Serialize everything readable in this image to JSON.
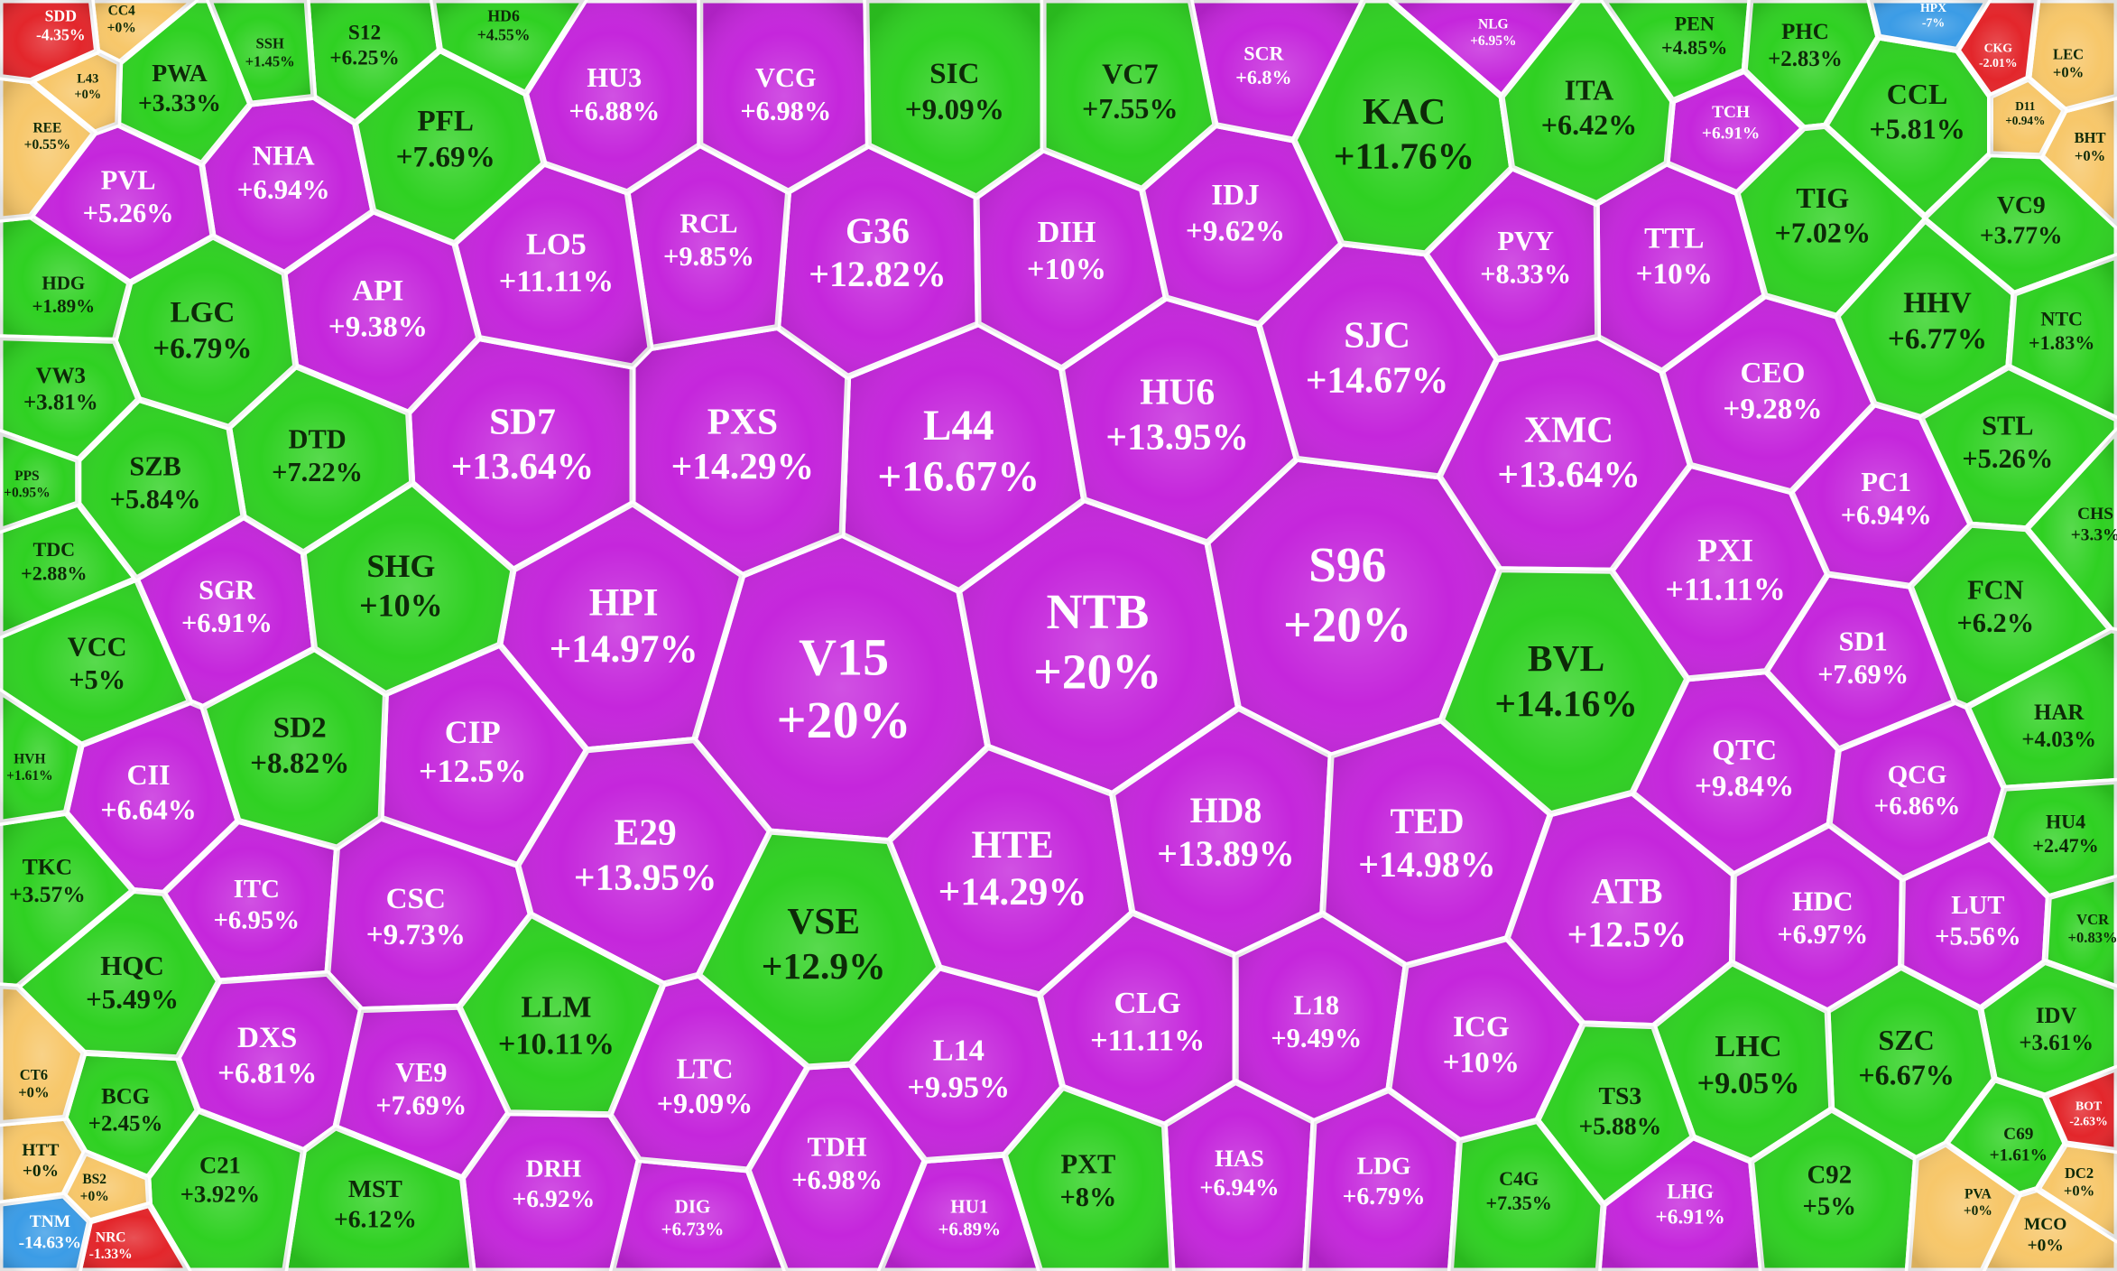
{
  "cells": [
    {
      "ticker": "V15",
      "change": "+20%",
      "color": "#c526dc"
    },
    {
      "ticker": "NTB",
      "change": "+20%",
      "color": "#c526dc"
    },
    {
      "ticker": "S96",
      "change": "+20%",
      "color": "#c526dc"
    },
    {
      "ticker": "L44",
      "change": "+16.67%",
      "color": "#c526dc"
    },
    {
      "ticker": "HU6",
      "change": "+13.95%",
      "color": "#c526dc"
    },
    {
      "ticker": "SJC",
      "change": "+14.67%",
      "color": "#c526dc"
    },
    {
      "ticker": "PXS",
      "change": "+14.29%",
      "color": "#c526dc"
    },
    {
      "ticker": "SD7",
      "change": "+13.64%",
      "color": "#c526dc"
    },
    {
      "ticker": "HPI",
      "change": "+14.97%",
      "color": "#c526dc"
    },
    {
      "ticker": "G36",
      "change": "+12.82%",
      "color": "#c526dc"
    },
    {
      "ticker": "DIH",
      "change": "+10%",
      "color": "#c526dc"
    },
    {
      "ticker": "IDJ",
      "change": "+9.62%",
      "color": "#c526dc"
    },
    {
      "ticker": "RCL",
      "change": "+9.85%",
      "color": "#c526dc"
    },
    {
      "ticker": "LO5",
      "change": "+11.11%",
      "color": "#c526dc"
    },
    {
      "ticker": "HU3",
      "change": "+6.88%",
      "color": "#c526dc"
    },
    {
      "ticker": "VCG",
      "change": "+6.98%",
      "color": "#c526dc"
    },
    {
      "ticker": "API",
      "change": "+9.38%",
      "color": "#c526dc"
    },
    {
      "ticker": "NHA",
      "change": "+6.94%",
      "color": "#c526dc"
    },
    {
      "ticker": "PVL",
      "change": "+5.26%",
      "color": "#c526dc"
    },
    {
      "ticker": "SGR",
      "change": "+6.91%",
      "color": "#c526dc"
    },
    {
      "ticker": "CII",
      "change": "+6.64%",
      "color": "#c526dc"
    },
    {
      "ticker": "ITC",
      "change": "+6.95%",
      "color": "#c526dc"
    },
    {
      "ticker": "CSC",
      "change": "+9.73%",
      "color": "#c526dc"
    },
    {
      "ticker": "DXS",
      "change": "+6.81%",
      "color": "#c526dc"
    },
    {
      "ticker": "VE9",
      "change": "+7.69%",
      "color": "#c526dc"
    },
    {
      "ticker": "DRH",
      "change": "+6.92%",
      "color": "#c526dc"
    },
    {
      "ticker": "DIG",
      "change": "+6.73%",
      "color": "#c526dc"
    },
    {
      "ticker": "LTC",
      "change": "+9.09%",
      "color": "#c526dc"
    },
    {
      "ticker": "TDH",
      "change": "+6.98%",
      "color": "#c526dc"
    },
    {
      "ticker": "HU1",
      "change": "+6.89%",
      "color": "#c526dc"
    },
    {
      "ticker": "L14",
      "change": "+9.95%",
      "color": "#c526dc"
    },
    {
      "ticker": "CIP",
      "change": "+12.5%",
      "color": "#c526dc"
    },
    {
      "ticker": "E29",
      "change": "+13.95%",
      "color": "#c526dc"
    },
    {
      "ticker": "HTE",
      "change": "+14.29%",
      "color": "#c526dc"
    },
    {
      "ticker": "HD8",
      "change": "+13.89%",
      "color": "#c526dc"
    },
    {
      "ticker": "TED",
      "change": "+14.98%",
      "color": "#c526dc"
    },
    {
      "ticker": "CLG",
      "change": "+11.11%",
      "color": "#c526dc"
    },
    {
      "ticker": "L18",
      "change": "+9.49%",
      "color": "#c526dc"
    },
    {
      "ticker": "ICG",
      "change": "+10%",
      "color": "#c526dc"
    },
    {
      "ticker": "HAS",
      "change": "+6.94%",
      "color": "#c526dc"
    },
    {
      "ticker": "LDG",
      "change": "+6.79%",
      "color": "#c526dc"
    },
    {
      "ticker": "ATB",
      "change": "+12.5%",
      "color": "#c526dc"
    },
    {
      "ticker": "QTC",
      "change": "+9.84%",
      "color": "#c526dc"
    },
    {
      "ticker": "HDC",
      "change": "+6.97%",
      "color": "#c526dc"
    },
    {
      "ticker": "LUT",
      "change": "+5.56%",
      "color": "#c526dc"
    },
    {
      "ticker": "QCG",
      "change": "+6.86%",
      "color": "#c526dc"
    },
    {
      "ticker": "SD1",
      "change": "+7.69%",
      "color": "#c526dc"
    },
    {
      "ticker": "PXI",
      "change": "+11.11%",
      "color": "#c526dc"
    },
    {
      "ticker": "PC1",
      "change": "+6.94%",
      "color": "#c526dc"
    },
    {
      "ticker": "XMC",
      "change": "+13.64%",
      "color": "#c526dc"
    },
    {
      "ticker": "CEO",
      "change": "+9.28%",
      "color": "#c526dc"
    },
    {
      "ticker": "TTL",
      "change": "+10%",
      "color": "#c526dc"
    },
    {
      "ticker": "PVY",
      "change": "+8.33%",
      "color": "#c526dc"
    },
    {
      "ticker": "SCR",
      "change": "+6.8%",
      "color": "#c526dc"
    },
    {
      "ticker": "TCH",
      "change": "+6.91%",
      "color": "#c526dc"
    },
    {
      "ticker": "NLG",
      "change": "+6.95%",
      "color": "#c526dc"
    },
    {
      "ticker": "LHG",
      "change": "+6.91%",
      "color": "#c526dc"
    },
    {
      "ticker": "SIC",
      "change": "+9.09%",
      "color": "#2fd122"
    },
    {
      "ticker": "VC7",
      "change": "+7.55%",
      "color": "#2fd122"
    },
    {
      "ticker": "KAC",
      "change": "+11.76%",
      "color": "#2fd122"
    },
    {
      "ticker": "ITA",
      "change": "+6.42%",
      "color": "#2fd122"
    },
    {
      "ticker": "PEN",
      "change": "+4.85%",
      "color": "#2fd122"
    },
    {
      "ticker": "PHC",
      "change": "+2.83%",
      "color": "#2fd122"
    },
    {
      "ticker": "CCL",
      "change": "+5.81%",
      "color": "#2fd122"
    },
    {
      "ticker": "TIG",
      "change": "+7.02%",
      "color": "#2fd122"
    },
    {
      "ticker": "VC9",
      "change": "+3.77%",
      "color": "#2fd122"
    },
    {
      "ticker": "HHV",
      "change": "+6.77%",
      "color": "#2fd122"
    },
    {
      "ticker": "NTC",
      "change": "+1.83%",
      "color": "#2fd122"
    },
    {
      "ticker": "STL",
      "change": "+5.26%",
      "color": "#2fd122"
    },
    {
      "ticker": "CHS",
      "change": "+3.3%",
      "color": "#2fd122"
    },
    {
      "ticker": "FCN",
      "change": "+6.2%",
      "color": "#2fd122"
    },
    {
      "ticker": "HAR",
      "change": "+4.03%",
      "color": "#2fd122"
    },
    {
      "ticker": "HU4",
      "change": "+2.47%",
      "color": "#2fd122"
    },
    {
      "ticker": "VCR",
      "change": "+0.83%",
      "color": "#2fd122"
    },
    {
      "ticker": "IDV",
      "change": "+3.61%",
      "color": "#2fd122"
    },
    {
      "ticker": "SZC",
      "change": "+6.67%",
      "color": "#2fd122"
    },
    {
      "ticker": "LHC",
      "change": "+9.05%",
      "color": "#2fd122"
    },
    {
      "ticker": "C92",
      "change": "+5%",
      "color": "#2fd122"
    },
    {
      "ticker": "C69",
      "change": "+1.61%",
      "color": "#2fd122"
    },
    {
      "ticker": "TS3",
      "change": "+5.88%",
      "color": "#2fd122"
    },
    {
      "ticker": "C4G",
      "change": "+7.35%",
      "color": "#2fd122"
    },
    {
      "ticker": "PXT",
      "change": "+8%",
      "color": "#2fd122"
    },
    {
      "ticker": "VSE",
      "change": "+12.9%",
      "color": "#2fd122"
    },
    {
      "ticker": "LLM",
      "change": "+10.11%",
      "color": "#2fd122"
    },
    {
      "ticker": "MST",
      "change": "+6.12%",
      "color": "#2fd122"
    },
    {
      "ticker": "C21",
      "change": "+3.92%",
      "color": "#2fd122"
    },
    {
      "ticker": "BCG",
      "change": "+2.45%",
      "color": "#2fd122"
    },
    {
      "ticker": "HQC",
      "change": "+5.49%",
      "color": "#2fd122"
    },
    {
      "ticker": "TKC",
      "change": "+3.57%",
      "color": "#2fd122"
    },
    {
      "ticker": "SD2",
      "change": "+8.82%",
      "color": "#2fd122"
    },
    {
      "ticker": "VCC",
      "change": "+5%",
      "color": "#2fd122"
    },
    {
      "ticker": "SHG",
      "change": "+10%",
      "color": "#2fd122"
    },
    {
      "ticker": "TDC",
      "change": "+2.88%",
      "color": "#2fd122"
    },
    {
      "ticker": "DTD",
      "change": "+7.22%",
      "color": "#2fd122"
    },
    {
      "ticker": "SZB",
      "change": "+5.84%",
      "color": "#2fd122"
    },
    {
      "ticker": "LGC",
      "change": "+6.79%",
      "color": "#2fd122"
    },
    {
      "ticker": "PFL",
      "change": "+7.69%",
      "color": "#2fd122"
    },
    {
      "ticker": "PWA",
      "change": "+3.33%",
      "color": "#2fd122"
    },
    {
      "ticker": "HDG",
      "change": "+1.89%",
      "color": "#2fd122"
    },
    {
      "ticker": "VW3",
      "change": "+3.81%",
      "color": "#2fd122"
    },
    {
      "ticker": "S12",
      "change": "+6.25%",
      "color": "#2fd122"
    },
    {
      "ticker": "SSH",
      "change": "+1.45%",
      "color": "#2fd122"
    },
    {
      "ticker": "HD6",
      "change": "+4.55%",
      "color": "#2fd122"
    },
    {
      "ticker": "BVL",
      "change": "+14.16%",
      "color": "#2fd122"
    },
    {
      "ticker": "PPS",
      "change": "+0.95%",
      "color": "#2fd122"
    },
    {
      "ticker": "HVH",
      "change": "+1.61%",
      "color": "#2fd122"
    },
    {
      "ticker": "CC4",
      "change": "+0%",
      "color": "#f7c76a"
    },
    {
      "ticker": "HTT",
      "change": "+0%",
      "color": "#f7c76a"
    },
    {
      "ticker": "CT6",
      "change": "+0%",
      "color": "#f7c76a"
    },
    {
      "ticker": "BS2",
      "change": "+0%",
      "color": "#f7c76a"
    },
    {
      "ticker": "L43",
      "change": "+0%",
      "color": "#f7c76a"
    },
    {
      "ticker": "REE",
      "change": "+0.55%",
      "color": "#f7c76a"
    },
    {
      "ticker": "BHT",
      "change": "+0%",
      "color": "#f7c76a"
    },
    {
      "ticker": "LEC",
      "change": "+0%",
      "color": "#f7c76a"
    },
    {
      "ticker": "MCO",
      "change": "+0%",
      "color": "#f7c76a"
    },
    {
      "ticker": "DC2",
      "change": "+0%",
      "color": "#f7c76a"
    },
    {
      "ticker": "PVA",
      "change": "+0%",
      "color": "#f7c76a"
    },
    {
      "ticker": "SDD",
      "change": "-4.35%",
      "color": "#e3262b"
    },
    {
      "ticker": "NRC",
      "change": "-1.33%",
      "color": "#e3262b"
    },
    {
      "ticker": "CKG",
      "change": "-2.01%",
      "color": "#e3262b"
    },
    {
      "ticker": "BOT",
      "change": "-2.63%",
      "color": "#e3262b"
    },
    {
      "ticker": "TNM",
      "change": "-14.63%",
      "color": "#3b9ce6"
    },
    {
      "ticker": "HPX",
      "change": "-7%",
      "color": "#3b9ce6"
    },
    {
      "ticker": "D11",
      "change": "+0.94%",
      "color": "#f7c76a"
    }
  ]
}
